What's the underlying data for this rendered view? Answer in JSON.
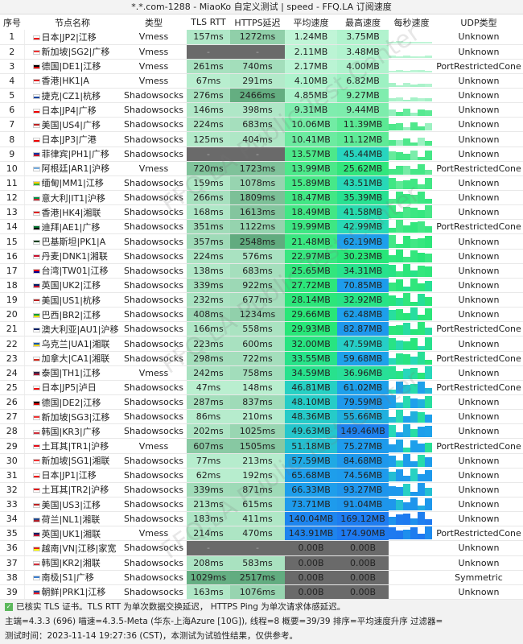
{
  "title": "*.*.com-1288 - MiaoKo 自定义测试 | speed - FFQ.LA 订阅速度",
  "headers": [
    "序号",
    "节点名称",
    "类型",
    "TLS RTT",
    "HTTPS延迟",
    "平均速度",
    "最高速度",
    "每秒速度",
    "UDP类型"
  ],
  "rows": [
    [
      "1",
      "日本|JP2|江移",
      "Vmess",
      "157ms",
      "1272ms",
      "1.24MB",
      "3.75MB",
      "Unknown",
      "jp"
    ],
    [
      "2",
      "新加坡|SG2|广移",
      "Vmess",
      "-",
      "-",
      "2.11MB",
      "3.48MB",
      "Unknown",
      "sg"
    ],
    [
      "3",
      "德国|DE1|江移",
      "Vmess",
      "261ms",
      "740ms",
      "2.17MB",
      "4.00MB",
      "PortRestrictedCone",
      "de"
    ],
    [
      "4",
      "香港|HK1|A",
      "Vmess",
      "67ms",
      "291ms",
      "4.10MB",
      "6.82MB",
      "Unknown",
      "hk"
    ],
    [
      "5",
      "捷克|CZ1|杭移",
      "Shadowsocks",
      "276ms",
      "2466ms",
      "4.85MB",
      "9.27MB",
      "Unknown",
      "cz"
    ],
    [
      "6",
      "日本|JP4|广移",
      "Shadowsocks",
      "146ms",
      "398ms",
      "9.31MB",
      "9.44MB",
      "Unknown",
      "jp"
    ],
    [
      "7",
      "美国|US4|广移",
      "Shadowsocks",
      "224ms",
      "683ms",
      "10.06MB",
      "11.39MB",
      "Unknown",
      "us"
    ],
    [
      "8",
      "日本|JP3|广港",
      "Shadowsocks",
      "125ms",
      "404ms",
      "10.41MB",
      "11.12MB",
      "Unknown",
      "jp"
    ],
    [
      "9",
      "菲律宾|PH1|广移",
      "Shadowsocks",
      "-",
      "-",
      "13.57MB",
      "45.44MB",
      "Unknown",
      "ph"
    ],
    [
      "10",
      "阿根廷|AR1|沪移",
      "Vmess",
      "720ms",
      "1723ms",
      "13.99MB",
      "25.62MB",
      "PortRestrictedCone",
      "ar"
    ],
    [
      "11",
      "缅甸|MM1|江移",
      "Shadowsocks",
      "159ms",
      "1078ms",
      "15.89MB",
      "43.51MB",
      "Unknown",
      "mm"
    ],
    [
      "12",
      "意大利|IT1|沪移",
      "Shadowsocks",
      "266ms",
      "1809ms",
      "18.47MB",
      "35.39MB",
      "Unknown",
      "it"
    ],
    [
      "13",
      "香港|HK4|湘联",
      "Shadowsocks",
      "168ms",
      "1613ms",
      "18.49MB",
      "41.58MB",
      "Unknown",
      "hk"
    ],
    [
      "14",
      "迪拜|AE1|广移",
      "Shadowsocks",
      "351ms",
      "1122ms",
      "19.99MB",
      "42.99MB",
      "PortRestrictedCone",
      "ae"
    ],
    [
      "15",
      "巴基斯坦|PK1|A",
      "Shadowsocks",
      "357ms",
      "2548ms",
      "21.48MB",
      "62.19MB",
      "Unknown",
      "pk"
    ],
    [
      "16",
      "丹麦|DNK1|湘联",
      "Shadowsocks",
      "224ms",
      "576ms",
      "22.97MB",
      "30.23MB",
      "Unknown",
      "dk"
    ],
    [
      "17",
      "台湾|TW01|江移",
      "Shadowsocks",
      "138ms",
      "683ms",
      "25.65MB",
      "34.31MB",
      "Unknown",
      "tw"
    ],
    [
      "18",
      "英国|UK2|江移",
      "Shadowsocks",
      "339ms",
      "922ms",
      "27.72MB",
      "70.85MB",
      "Unknown",
      "uk"
    ],
    [
      "19",
      "美国|US1|杭移",
      "Shadowsocks",
      "232ms",
      "677ms",
      "28.14MB",
      "32.92MB",
      "Unknown",
      "us"
    ],
    [
      "20",
      "巴西|BR2|江移",
      "Shadowsocks",
      "408ms",
      "1234ms",
      "29.66MB",
      "62.48MB",
      "Unknown",
      "br"
    ],
    [
      "21",
      "澳大利亚|AU1|沪移",
      "Shadowsocks",
      "166ms",
      "558ms",
      "29.93MB",
      "82.87MB",
      "PortRestrictedCone",
      "au"
    ],
    [
      "22",
      "乌克兰|UA1|湘联",
      "Shadowsocks",
      "223ms",
      "600ms",
      "32.00MB",
      "47.59MB",
      "Unknown",
      "ua"
    ],
    [
      "23",
      "加拿大|CA1|湘联",
      "Shadowsocks",
      "298ms",
      "722ms",
      "33.55MB",
      "59.68MB",
      "PortRestrictedCone",
      "ca"
    ],
    [
      "24",
      "泰国|TH1|江移",
      "Vmess",
      "242ms",
      "758ms",
      "34.59MB",
      "36.96MB",
      "Unknown",
      "th"
    ],
    [
      "25",
      "日本|JP5|泸日",
      "Shadowsocks",
      "47ms",
      "148ms",
      "46.81MB",
      "61.02MB",
      "PortRestrictedCone",
      "jp"
    ],
    [
      "26",
      "德国|DE2|江移",
      "Shadowsocks",
      "287ms",
      "837ms",
      "48.10MB",
      "79.59MB",
      "Unknown",
      "de"
    ],
    [
      "27",
      "新加坡|SG3|江移",
      "Shadowsocks",
      "86ms",
      "210ms",
      "48.36MB",
      "55.66MB",
      "Unknown",
      "sg"
    ],
    [
      "28",
      "韩国|KR3|广移",
      "Shadowsocks",
      "202ms",
      "1025ms",
      "49.63MB",
      "149.46MB",
      "Unknown",
      "kr"
    ],
    [
      "29",
      "土耳其|TR1|沪移",
      "Vmess",
      "607ms",
      "1505ms",
      "51.18MB",
      "75.27MB",
      "PortRestrictedCone",
      "tr"
    ],
    [
      "30",
      "新加坡|SG1|湘联",
      "Shadowsocks",
      "77ms",
      "213ms",
      "57.59MB",
      "84.68MB",
      "Unknown",
      "sg"
    ],
    [
      "31",
      "日本|JP1|江移",
      "Shadowsocks",
      "62ms",
      "192ms",
      "65.68MB",
      "74.56MB",
      "Unknown",
      "jp"
    ],
    [
      "32",
      "土耳其|TR2|沪移",
      "Shadowsocks",
      "339ms",
      "871ms",
      "66.33MB",
      "93.27MB",
      "Unknown",
      "tr"
    ],
    [
      "33",
      "美国|US3|江移",
      "Shadowsocks",
      "213ms",
      "615ms",
      "73.71MB",
      "91.04MB",
      "Unknown",
      "us"
    ],
    [
      "34",
      "荷兰|NL1|湘联",
      "Shadowsocks",
      "183ms",
      "411ms",
      "140.04MB",
      "169.12MB",
      "Unknown",
      "nl"
    ],
    [
      "35",
      "英国|UK1|湘联",
      "Vmess",
      "214ms",
      "470ms",
      "143.91MB",
      "174.90MB",
      "PortRestrictedCone",
      "uk"
    ],
    [
      "36",
      "越南|VN|江移|家宽",
      "Shadowsocks",
      "-",
      "-",
      "0.00B",
      "0.00B",
      "Unknown",
      "vn"
    ],
    [
      "37",
      "韩国|KR2|湘联",
      "Shadowsocks",
      "208ms",
      "583ms",
      "0.00B",
      "0.00B",
      "Unknown",
      "kr"
    ],
    [
      "38",
      "南极|S1|广移",
      "Shadowsocks",
      "1029ms",
      "2517ms",
      "0.00B",
      "0.00B",
      "Symmetric",
      "aq"
    ],
    [
      "39",
      "朝鲜|PRK1|江移",
      "Shadowsocks",
      "163ms",
      "1076ms",
      "0.00B",
      "0.00B",
      "Unknown",
      "kp"
    ]
  ],
  "footer": {
    "line1": "已核实 TLS 证书。TLS RTT 为单次数据交换延迟， HTTPS Ping 为单次请求体感延迟。",
    "line2": "主端=4.3.3 (696) 喵速=4.3.5-Meta (华东-上海Azure [10G]), 线程=8 概要=39/39 排序=平均速度升序 过滤器=",
    "line3": "测试时间：2023-11-14 19:27:36 (CST)，本测试为试验性结果，仅供参考。"
  },
  "watermark": "FFQ.LA Public Test Center"
}
